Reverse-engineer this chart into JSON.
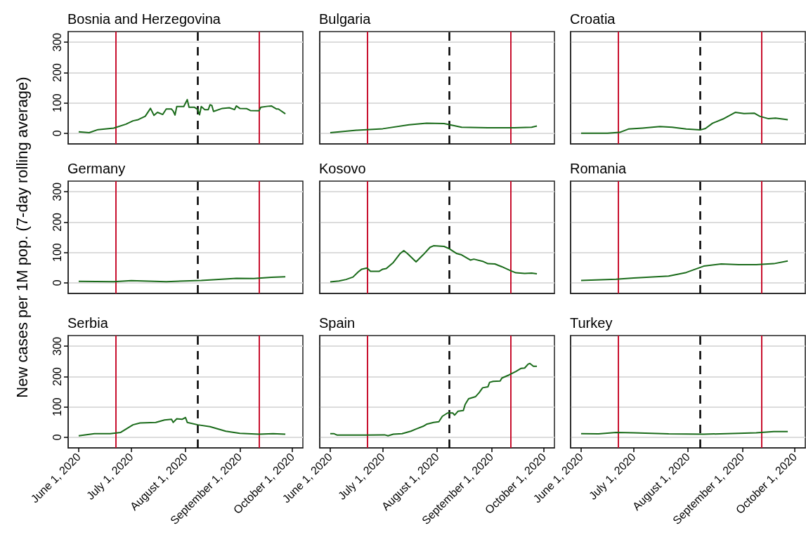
{
  "chart_data": [
    {
      "type": "line",
      "title": "Bosnia and Herzegovina",
      "xlim": [
        "2020-05-26",
        "2020-10-07"
      ],
      "ylim": [
        -35,
        335
      ],
      "yticks": [
        0,
        100,
        200,
        300
      ],
      "grid": "y",
      "tick_labels": "y",
      "ref_lines": [
        {
          "axis": "x",
          "value": "2020-06-22",
          "color": "#c8102e"
        },
        {
          "axis": "x",
          "value": "2020-08-08",
          "color": "#000000",
          "line_style": "dashed"
        },
        {
          "axis": "x",
          "value": "2020-09-12",
          "color": "#c8102e"
        }
      ],
      "series": [
        {
          "color": "#1a6b1a",
          "x": [
            "2020-06-01",
            "2020-06-07",
            "2020-06-12",
            "2020-06-21",
            "2020-06-28",
            "2020-07-02",
            "2020-07-05",
            "2020-07-09",
            "2020-07-12",
            "2020-07-14",
            "2020-07-16",
            "2020-07-19",
            "2020-07-21",
            "2020-07-24",
            "2020-07-25",
            "2020-07-26",
            "2020-07-27",
            "2020-07-31",
            "2020-08-02",
            "2020-08-03",
            "2020-08-06",
            "2020-08-08",
            "2020-08-09",
            "2020-08-10",
            "2020-08-12",
            "2020-08-14",
            "2020-08-15",
            "2020-08-16",
            "2020-08-17",
            "2020-08-22",
            "2020-08-26",
            "2020-08-29",
            "2020-08-30",
            "2020-09-01",
            "2020-09-05",
            "2020-09-07",
            "2020-09-12",
            "2020-09-13",
            "2020-09-17",
            "2020-09-19",
            "2020-09-22",
            "2020-09-23",
            "2020-09-27"
          ],
          "values": [
            5,
            2,
            12,
            17,
            30,
            41,
            45,
            56,
            82,
            59,
            69,
            62,
            80,
            80,
            73,
            60,
            88,
            88,
            111,
            86,
            86,
            78,
            61,
            88,
            78,
            78,
            94,
            92,
            72,
            82,
            84,
            78,
            90,
            82,
            81,
            75,
            74,
            86,
            89,
            90,
            80,
            80,
            64
          ]
        }
      ]
    },
    {
      "type": "line",
      "title": "Bulgaria",
      "xlim": [
        "2020-05-26",
        "2020-10-07"
      ],
      "ylim": [
        -35,
        335
      ],
      "yticks": [
        0,
        100,
        200,
        300
      ],
      "grid": "y",
      "tick_labels": false,
      "ref_lines": [
        {
          "axis": "x",
          "value": "2020-06-22",
          "color": "#c8102e"
        },
        {
          "axis": "x",
          "value": "2020-08-08",
          "color": "#000000",
          "line_style": "dashed"
        },
        {
          "axis": "x",
          "value": "2020-09-12",
          "color": "#c8102e"
        }
      ],
      "series": [
        {
          "color": "#1a6b1a",
          "x": [
            "2020-06-01",
            "2020-06-16",
            "2020-07-01",
            "2020-07-16",
            "2020-07-26",
            "2020-08-05",
            "2020-08-15",
            "2020-08-30",
            "2020-09-14",
            "2020-09-24",
            "2020-09-27"
          ],
          "values": [
            2,
            10,
            15,
            28,
            33,
            32,
            20,
            18,
            18,
            20,
            24
          ]
        }
      ]
    },
    {
      "type": "line",
      "title": "Croatia",
      "xlim": [
        "2020-05-26",
        "2020-10-07"
      ],
      "ylim": [
        -35,
        335
      ],
      "yticks": [
        0,
        100,
        200,
        300
      ],
      "grid": "y",
      "tick_labels": false,
      "ref_lines": [
        {
          "axis": "x",
          "value": "2020-06-22",
          "color": "#c8102e"
        },
        {
          "axis": "x",
          "value": "2020-08-08",
          "color": "#000000",
          "line_style": "dashed"
        },
        {
          "axis": "x",
          "value": "2020-09-12",
          "color": "#c8102e"
        }
      ],
      "series": [
        {
          "color": "#1a6b1a",
          "x": [
            "2020-06-01",
            "2020-06-16",
            "2020-06-23",
            "2020-06-28",
            "2020-07-06",
            "2020-07-16",
            "2020-07-23",
            "2020-07-31",
            "2020-08-08",
            "2020-08-11",
            "2020-08-15",
            "2020-08-21",
            "2020-08-28",
            "2020-09-02",
            "2020-09-08",
            "2020-09-11",
            "2020-09-16",
            "2020-09-20",
            "2020-09-27"
          ],
          "values": [
            0,
            0,
            3,
            14,
            17,
            22,
            20,
            14,
            11,
            16,
            33,
            47,
            69,
            65,
            66,
            56,
            48,
            50,
            45
          ]
        }
      ]
    },
    {
      "type": "line",
      "title": "Germany",
      "ylabel": "New cases per 1M pop. (7-day rolling average)",
      "xlim": [
        "2020-05-26",
        "2020-10-07"
      ],
      "ylim": [
        -35,
        335
      ],
      "yticks": [
        0,
        100,
        200,
        300
      ],
      "grid": "y",
      "tick_labels": "y",
      "ref_lines": [
        {
          "axis": "x",
          "value": "2020-06-22",
          "color": "#c8102e"
        },
        {
          "axis": "x",
          "value": "2020-08-08",
          "color": "#000000",
          "line_style": "dashed"
        },
        {
          "axis": "x",
          "value": "2020-09-12",
          "color": "#c8102e"
        }
      ],
      "series": [
        {
          "color": "#1a6b1a",
          "x": [
            "2020-06-01",
            "2020-06-21",
            "2020-07-01",
            "2020-07-21",
            "2020-08-10",
            "2020-08-30",
            "2020-09-09",
            "2020-09-19",
            "2020-09-27"
          ],
          "values": [
            5,
            4,
            7,
            4,
            8,
            15,
            14,
            18,
            20
          ]
        }
      ]
    },
    {
      "type": "line",
      "title": "Kosovo",
      "xlim": [
        "2020-05-26",
        "2020-10-07"
      ],
      "ylim": [
        -35,
        335
      ],
      "yticks": [
        0,
        100,
        200,
        300
      ],
      "grid": "y",
      "tick_labels": false,
      "ref_lines": [
        {
          "axis": "x",
          "value": "2020-06-22",
          "color": "#c8102e"
        },
        {
          "axis": "x",
          "value": "2020-08-08",
          "color": "#000000",
          "line_style": "dashed"
        },
        {
          "axis": "x",
          "value": "2020-09-12",
          "color": "#c8102e"
        }
      ],
      "series": [
        {
          "color": "#1a6b1a",
          "x": [
            "2020-06-01",
            "2020-06-06",
            "2020-06-10",
            "2020-06-14",
            "2020-06-17",
            "2020-06-19",
            "2020-06-22",
            "2020-06-24",
            "2020-06-29",
            "2020-07-01",
            "2020-07-03",
            "2020-07-07",
            "2020-07-11",
            "2020-07-13",
            "2020-07-15",
            "2020-07-20",
            "2020-07-24",
            "2020-07-28",
            "2020-07-30",
            "2020-08-05",
            "2020-08-08",
            "2020-08-12",
            "2020-08-15",
            "2020-08-20",
            "2020-08-22",
            "2020-08-27",
            "2020-08-30",
            "2020-09-03",
            "2020-09-07",
            "2020-09-12",
            "2020-09-15",
            "2020-09-20",
            "2020-09-24",
            "2020-09-27"
          ],
          "values": [
            3,
            6,
            11,
            19,
            36,
            45,
            49,
            38,
            38,
            45,
            47,
            67,
            97,
            106,
            97,
            69,
            92,
            117,
            122,
            120,
            112,
            97,
            92,
            75,
            78,
            71,
            63,
            62,
            53,
            40,
            33,
            31,
            32,
            30
          ]
        }
      ]
    },
    {
      "type": "line",
      "title": "Romania",
      "xlim": [
        "2020-05-26",
        "2020-10-07"
      ],
      "ylim": [
        -35,
        335
      ],
      "yticks": [
        0,
        100,
        200,
        300
      ],
      "grid": "y",
      "tick_labels": false,
      "ref_lines": [
        {
          "axis": "x",
          "value": "2020-06-22",
          "color": "#c8102e"
        },
        {
          "axis": "x",
          "value": "2020-08-08",
          "color": "#000000",
          "line_style": "dashed"
        },
        {
          "axis": "x",
          "value": "2020-09-12",
          "color": "#c8102e"
        }
      ],
      "series": [
        {
          "color": "#1a6b1a",
          "x": [
            "2020-06-01",
            "2020-06-21",
            "2020-07-01",
            "2020-07-21",
            "2020-07-31",
            "2020-08-10",
            "2020-08-20",
            "2020-08-30",
            "2020-09-09",
            "2020-09-19",
            "2020-09-27"
          ],
          "values": [
            8,
            12,
            16,
            22,
            34,
            55,
            62,
            60,
            60,
            63,
            72
          ]
        }
      ]
    },
    {
      "type": "line",
      "title": "Serbia",
      "xlim": [
        "2020-05-26",
        "2020-10-07"
      ],
      "xticks": [
        {
          "value": "2020-06-01",
          "label": "June 1, 2020"
        },
        {
          "value": "2020-07-01",
          "label": "July 1, 2020"
        },
        {
          "value": "2020-08-01",
          "label": "August 1, 2020"
        },
        {
          "value": "2020-09-01",
          "label": "September 1, 2020"
        },
        {
          "value": "2020-10-01",
          "label": "October 1, 2020"
        }
      ],
      "ylim": [
        -35,
        335
      ],
      "yticks": [
        0,
        100,
        200,
        300
      ],
      "grid": "y",
      "ref_lines": [
        {
          "axis": "x",
          "value": "2020-06-22",
          "color": "#c8102e"
        },
        {
          "axis": "x",
          "value": "2020-08-08",
          "color": "#000000",
          "line_style": "dashed"
        },
        {
          "axis": "x",
          "value": "2020-09-12",
          "color": "#c8102e"
        }
      ],
      "series": [
        {
          "color": "#1a6b1a",
          "x": [
            "2020-06-01",
            "2020-06-10",
            "2020-06-19",
            "2020-06-25",
            "2020-07-02",
            "2020-07-06",
            "2020-07-15",
            "2020-07-20",
            "2020-07-24",
            "2020-07-25",
            "2020-07-27",
            "2020-07-30",
            "2020-08-01",
            "2020-08-02",
            "2020-08-08",
            "2020-08-15",
            "2020-08-24",
            "2020-09-01",
            "2020-09-12",
            "2020-09-20",
            "2020-09-27"
          ],
          "values": [
            5,
            12,
            12,
            16,
            41,
            47,
            49,
            57,
            59,
            49,
            61,
            59,
            65,
            49,
            41,
            35,
            20,
            13,
            10,
            12,
            10
          ]
        }
      ]
    },
    {
      "type": "line",
      "title": "Spain",
      "xlim": [
        "2020-05-26",
        "2020-10-07"
      ],
      "xticks": [
        {
          "value": "2020-06-01",
          "label": "June 1, 2020"
        },
        {
          "value": "2020-07-01",
          "label": "July 1, 2020"
        },
        {
          "value": "2020-08-01",
          "label": "August 1, 2020"
        },
        {
          "value": "2020-09-01",
          "label": "September 1, 2020"
        },
        {
          "value": "2020-10-01",
          "label": "October 1, 2020"
        }
      ],
      "ylim": [
        -35,
        335
      ],
      "yticks": [
        0,
        100,
        200,
        300
      ],
      "grid": "y",
      "tick_labels": "x",
      "ref_lines": [
        {
          "axis": "x",
          "value": "2020-06-22",
          "color": "#c8102e"
        },
        {
          "axis": "x",
          "value": "2020-08-08",
          "color": "#000000",
          "line_style": "dashed"
        },
        {
          "axis": "x",
          "value": "2020-09-12",
          "color": "#c8102e"
        }
      ],
      "series": [
        {
          "color": "#1a6b1a",
          "x": [
            "2020-06-01",
            "2020-06-03",
            "2020-06-05",
            "2020-06-13",
            "2020-06-22",
            "2020-07-02",
            "2020-07-04",
            "2020-07-07",
            "2020-07-12",
            "2020-07-17",
            "2020-07-20",
            "2020-07-24",
            "2020-07-26",
            "2020-07-30",
            "2020-08-02",
            "2020-08-04",
            "2020-08-07",
            "2020-08-10",
            "2020-08-11",
            "2020-08-13",
            "2020-08-16",
            "2020-08-17",
            "2020-08-19",
            "2020-08-23",
            "2020-08-25",
            "2020-08-27",
            "2020-08-30",
            "2020-08-31",
            "2020-09-02",
            "2020-09-06",
            "2020-09-07",
            "2020-09-11",
            "2020-09-15",
            "2020-09-18",
            "2020-09-20",
            "2020-09-22",
            "2020-09-23",
            "2020-09-25",
            "2020-09-27"
          ],
          "values": [
            12,
            12,
            7,
            7,
            7,
            8,
            5,
            10,
            12,
            20,
            27,
            36,
            43,
            49,
            51,
            69,
            80,
            80,
            73,
            86,
            88,
            108,
            127,
            134,
            147,
            163,
            166,
            181,
            184,
            185,
            195,
            205,
            217,
            227,
            228,
            241,
            243,
            234,
            234
          ]
        }
      ]
    },
    {
      "type": "line",
      "title": "Turkey",
      "xlim": [
        "2020-05-26",
        "2020-10-07"
      ],
      "xticks": [
        {
          "value": "2020-06-01",
          "label": "June 1, 2020"
        },
        {
          "value": "2020-07-01",
          "label": "July 1, 2020"
        },
        {
          "value": "2020-08-01",
          "label": "August 1, 2020"
        },
        {
          "value": "2020-09-01",
          "label": "September 1, 2020"
        },
        {
          "value": "2020-10-01",
          "label": "October 1, 2020"
        }
      ],
      "ylim": [
        -35,
        335
      ],
      "yticks": [
        0,
        100,
        200,
        300
      ],
      "grid": "y",
      "tick_labels": "x",
      "ref_lines": [
        {
          "axis": "x",
          "value": "2020-06-22",
          "color": "#c8102e"
        },
        {
          "axis": "x",
          "value": "2020-08-08",
          "color": "#000000",
          "line_style": "dashed"
        },
        {
          "axis": "x",
          "value": "2020-09-12",
          "color": "#c8102e"
        }
      ],
      "series": [
        {
          "color": "#1a6b1a",
          "x": [
            "2020-06-01",
            "2020-06-11",
            "2020-06-21",
            "2020-07-01",
            "2020-07-21",
            "2020-08-10",
            "2020-08-30",
            "2020-09-09",
            "2020-09-19",
            "2020-09-27"
          ],
          "values": [
            12,
            11,
            16,
            15,
            11,
            10,
            13,
            15,
            19,
            19
          ]
        }
      ]
    }
  ]
}
